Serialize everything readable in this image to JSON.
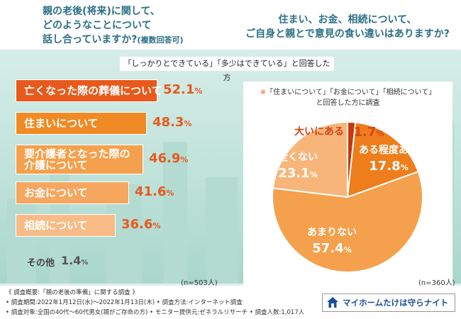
{
  "header": {
    "left_question_main": "親の老後(将来)に関して、\nどのようなことについて\n話し合っていますか?",
    "left_question_note": "(複数回答可)",
    "right_question": "住まい、お金、相続について、\nご自身と親とで意見の食い違いはありますか?"
  },
  "banner": "「しっかりとできている」「多少はできている」と回答した方",
  "pie_note": {
    "mark": "※",
    "text": "「住まいについて」「お金について」「相続について」\nと回答した方に調査"
  },
  "chart_data": [
    {
      "type": "bar",
      "orientation": "horizontal",
      "categories": [
        "亡くなった際の葬儀について",
        "住まいについて",
        "要介護者となった際の\n介護について",
        "お金について",
        "相続について",
        "その他"
      ],
      "values": [
        52.1,
        48.3,
        46.9,
        41.6,
        36.6,
        1.4
      ],
      "value_text": [
        "52.1",
        "48.3",
        "46.9",
        "41.6",
        "36.6",
        "1.4"
      ],
      "unit": "%",
      "colors": [
        "#e8591b",
        "#f08a24",
        "#f5a04c",
        "#f5a760",
        "#f8bb86",
        "#dff0ec"
      ],
      "xlim": [
        0,
        60
      ],
      "n_label": "(n=503人)"
    },
    {
      "type": "pie",
      "categories": [
        "大いにある",
        "ある程度ある",
        "あまりない",
        "全くない"
      ],
      "values": [
        1.7,
        17.8,
        57.4,
        23.1
      ],
      "value_text": [
        "1.7",
        "17.8",
        "57.4",
        "23.1"
      ],
      "unit": "%",
      "colors": [
        "#c8380f",
        "#ee7d1c",
        "#f4a04c",
        "#f8b57a"
      ],
      "label_colors": [
        "#d64418",
        "#ffffff",
        "#ffffff",
        "#ffffff"
      ],
      "n_label": "(n=360人)"
    }
  ],
  "footer": {
    "line1": "《 調査概要:「親の老後の準備」に関する調査 》",
    "line2": "• 調査期間:2022年1月12日(水)〜2022年1月13日(木) • 調査方法:インターネット調査",
    "line3": "• 調査対象:全国の40代〜60代男女(親がご存命の方) • モニター提供元:ゼネラルリサーチ • 調査人数:1,017人"
  },
  "logo": {
    "text": "マイホームたけは守らナイト",
    "icon": "house-shield-icon",
    "color": "#1a4f9c"
  }
}
